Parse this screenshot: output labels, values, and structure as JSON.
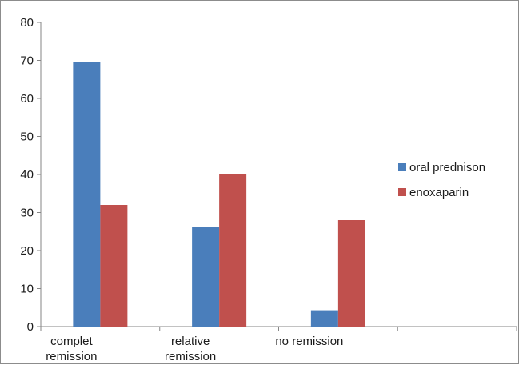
{
  "chart_data": {
    "type": "bar",
    "categories": [
      [
        "complet",
        "remission"
      ],
      [
        "relative",
        "remission"
      ],
      [
        "no remission"
      ],
      [
        ""
      ]
    ],
    "series": [
      {
        "name": "oral prednison",
        "values": [
          69.5,
          26.2,
          4.3,
          null
        ],
        "color": "#4a7ebb"
      },
      {
        "name": "enoxaparin",
        "values": [
          32,
          40,
          28,
          null
        ],
        "color": "#c0504d"
      }
    ],
    "ylim": [
      0,
      80
    ],
    "yticks": [
      0,
      10,
      20,
      30,
      40,
      50,
      60,
      70,
      80
    ],
    "grid": false,
    "legend_position": "right",
    "title": "",
    "xlabel": "",
    "ylabel": ""
  }
}
